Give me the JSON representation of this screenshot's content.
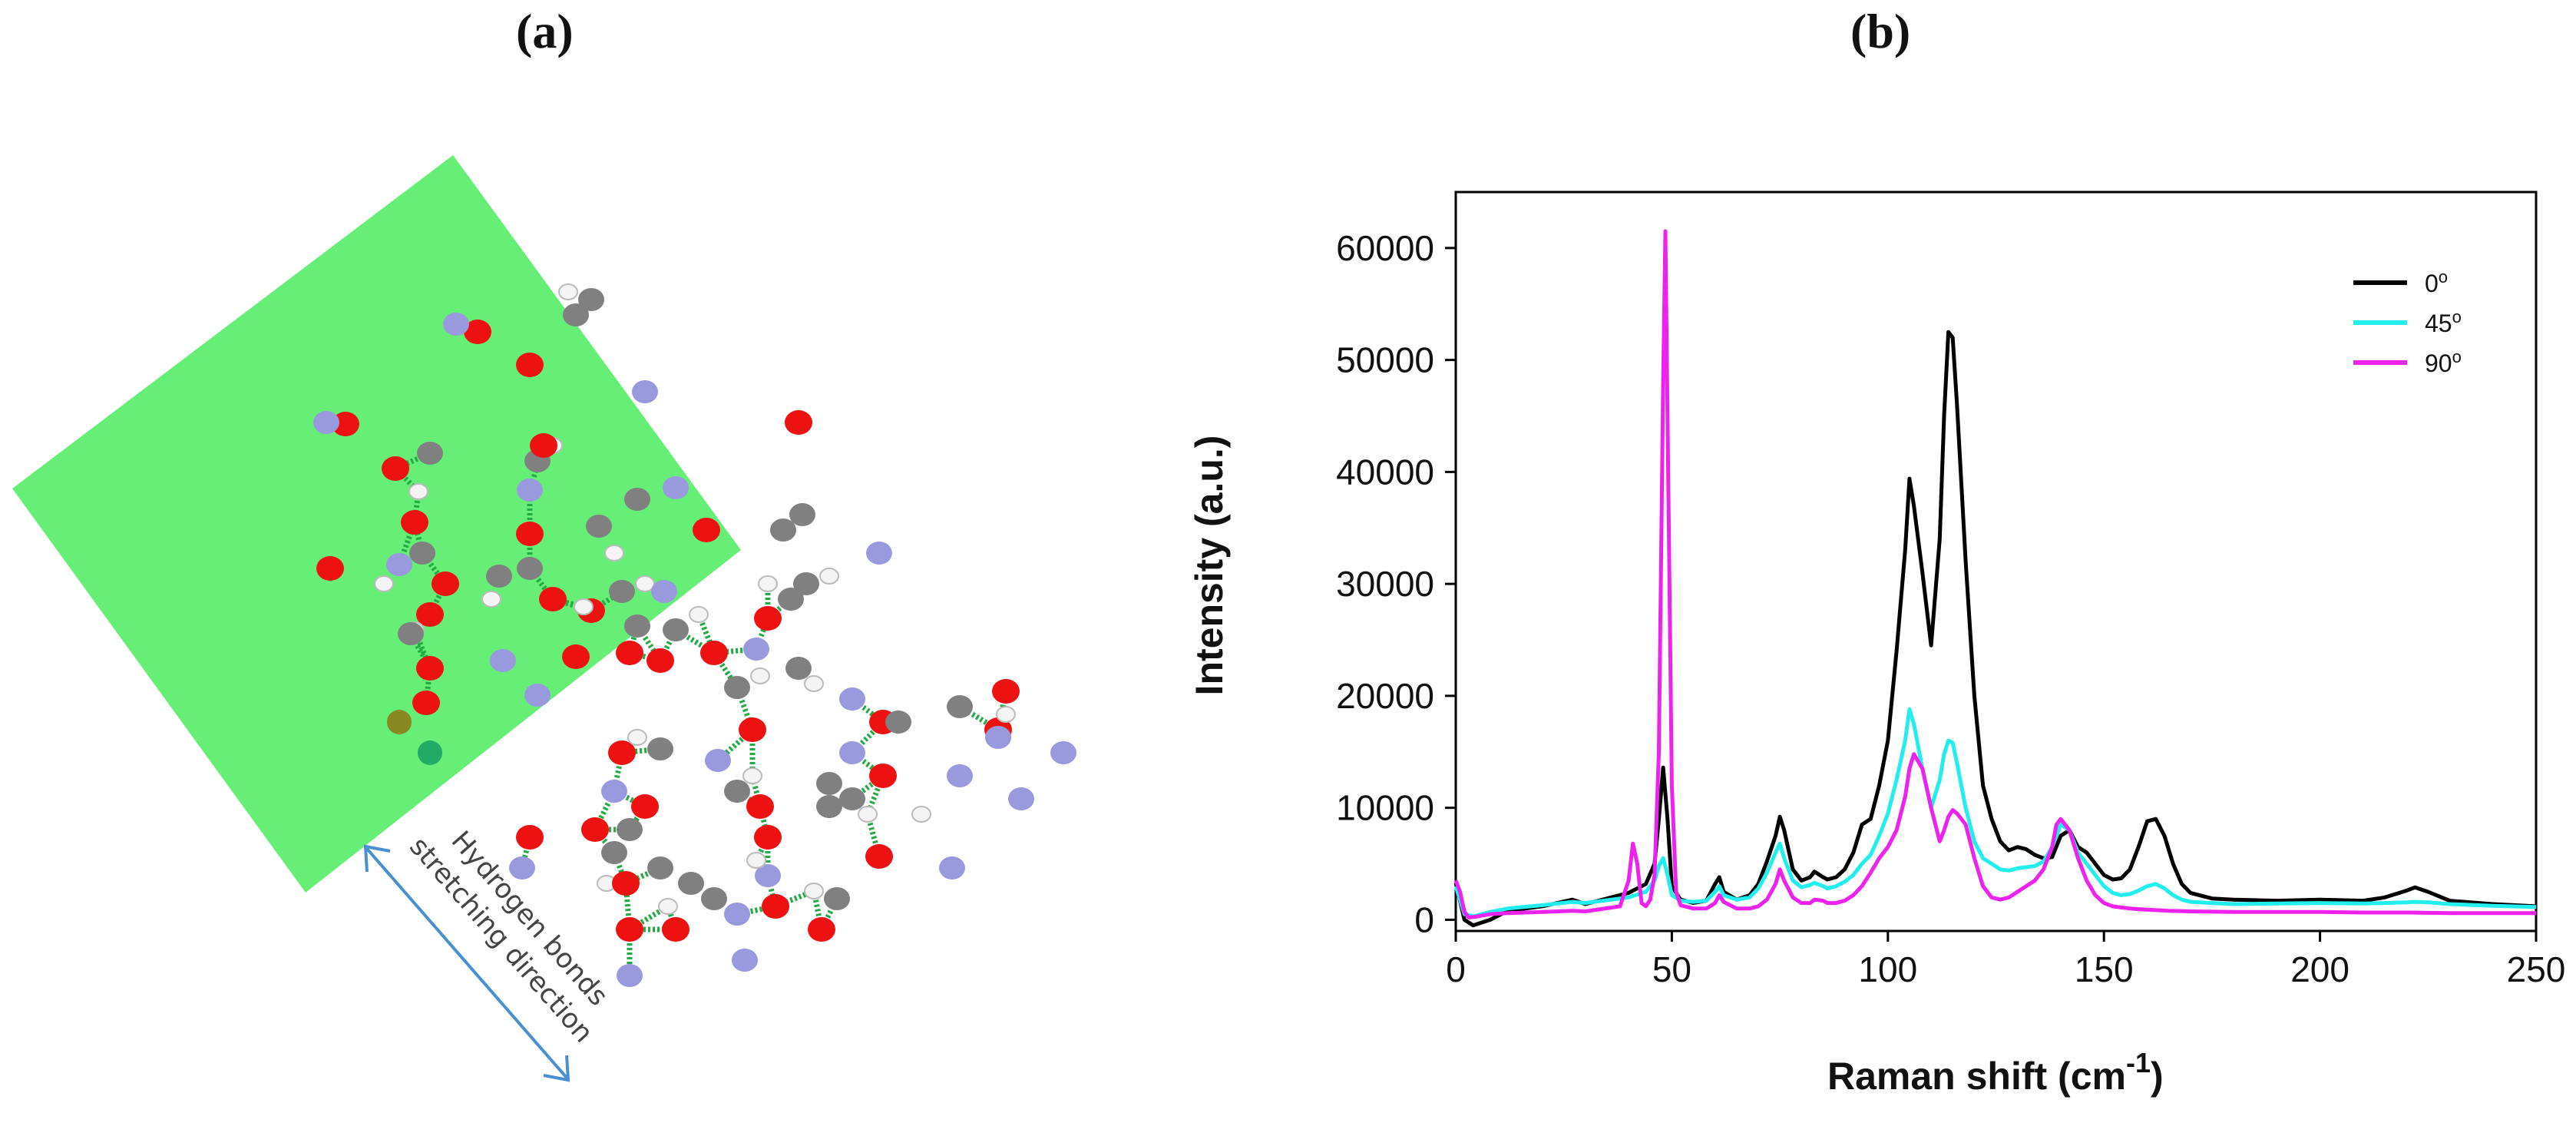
{
  "panels": {
    "a_label": "(a)",
    "b_label": "(b)"
  },
  "molecule": {
    "annotation_line1": "Hydrogen bonds",
    "annotation_line2": "stretching direction",
    "colors": {
      "plane": "#66ee77",
      "oxygen": "#ee1111",
      "nitrogen": "#9999dd",
      "carbon": "#808080",
      "hydrogen": "#f4f4f4",
      "bond": "#22aa44",
      "arrow": "#4a90d0"
    }
  },
  "chart_data": {
    "type": "line",
    "xlabel": "Raman shift (cm",
    "xlabel_sup": "-1",
    "xlabel_end": ")",
    "ylabel": "Intensity (a.u.)",
    "xlim": [
      0,
      250
    ],
    "ylim": [
      -1000,
      65000
    ],
    "xticks": [
      0,
      50,
      100,
      150,
      200,
      250
    ],
    "yticks": [
      0,
      10000,
      20000,
      30000,
      40000,
      50000,
      60000
    ],
    "legend_position": "top-right",
    "series": [
      {
        "name": "0",
        "unit": "o",
        "color": "#000000",
        "x": [
          0,
          2,
          4,
          8,
          12,
          20,
          27,
          30,
          40,
          44,
          46,
          47,
          48,
          49,
          50,
          52,
          55,
          58,
          60,
          61,
          62,
          65,
          68,
          70,
          72,
          74,
          75,
          76,
          78,
          80,
          82,
          83,
          85,
          86,
          88,
          90,
          92,
          94,
          96,
          98,
          100,
          102,
          104,
          105,
          106,
          108,
          110,
          112,
          113,
          114,
          115,
          116,
          118,
          120,
          122,
          124,
          126,
          128,
          130,
          132,
          134,
          136,
          138,
          140,
          142,
          144,
          146,
          148,
          150,
          152,
          154,
          156,
          158,
          160,
          162,
          164,
          166,
          168,
          170,
          175,
          180,
          190,
          200,
          210,
          215,
          220,
          222,
          225,
          230,
          240,
          250
        ],
        "y": [
          3300,
          0,
          -500,
          0,
          800,
          1200,
          1800,
          1400,
          2400,
          3200,
          5000,
          9000,
          13600,
          9000,
          3000,
          1800,
          1500,
          1700,
          3200,
          3800,
          2500,
          1800,
          2200,
          3200,
          5200,
          7500,
          9200,
          8000,
          4500,
          3500,
          3800,
          4300,
          3800,
          3600,
          3800,
          4500,
          6000,
          8500,
          9000,
          12000,
          16000,
          24000,
          33000,
          39400,
          37000,
          31000,
          24500,
          34000,
          45000,
          52500,
          52000,
          46000,
          32000,
          20000,
          12000,
          9000,
          7000,
          6200,
          6500,
          6300,
          5800,
          5500,
          5600,
          7500,
          8000,
          6500,
          6000,
          5000,
          4000,
          3600,
          3700,
          4500,
          6500,
          8800,
          9000,
          7500,
          5000,
          3200,
          2400,
          1900,
          1800,
          1700,
          1800,
          1700,
          2000,
          2600,
          2900,
          2500,
          1700,
          1400,
          1200
        ]
      },
      {
        "name": "45",
        "unit": "o",
        "color": "#22eeee",
        "x": [
          0,
          2,
          4,
          8,
          12,
          20,
          27,
          30,
          40,
          44,
          46,
          47,
          48,
          49,
          50,
          52,
          55,
          58,
          60,
          61,
          62,
          65,
          68,
          70,
          72,
          74,
          75,
          76,
          78,
          80,
          82,
          83,
          85,
          86,
          88,
          90,
          92,
          94,
          96,
          98,
          100,
          102,
          104,
          105,
          106,
          108,
          110,
          112,
          113,
          114,
          115,
          116,
          118,
          120,
          122,
          124,
          126,
          128,
          130,
          132,
          134,
          136,
          138,
          140,
          142,
          144,
          146,
          148,
          150,
          152,
          154,
          156,
          158,
          160,
          162,
          164,
          166,
          168,
          170,
          175,
          180,
          190,
          200,
          210,
          215,
          220,
          222,
          225,
          230,
          240,
          250
        ],
        "y": [
          3000,
          500,
          300,
          700,
          1000,
          1300,
          1600,
          1500,
          2000,
          2500,
          3500,
          4800,
          5500,
          4000,
          2200,
          1700,
          1600,
          1700,
          2500,
          3000,
          2200,
          1800,
          2000,
          2800,
          4200,
          6000,
          6800,
          5500,
          3500,
          2900,
          3100,
          3300,
          3000,
          2800,
          3000,
          3400,
          4000,
          5000,
          5800,
          7500,
          9500,
          12500,
          16000,
          18800,
          17500,
          13500,
          10000,
          12500,
          14800,
          16000,
          15800,
          14000,
          10000,
          7000,
          5500,
          5000,
          4500,
          4400,
          4600,
          4700,
          4800,
          5200,
          6500,
          8500,
          8000,
          6000,
          5000,
          4000,
          3000,
          2400,
          2200,
          2300,
          2600,
          3000,
          3200,
          2800,
          2200,
          1800,
          1600,
          1500,
          1400,
          1450,
          1500,
          1450,
          1500,
          1550,
          1600,
          1550,
          1400,
          1250,
          1150
        ]
      },
      {
        "name": "90",
        "unit": "o",
        "color": "#ee22ee",
        "x": [
          0,
          1,
          2,
          3,
          5,
          8,
          12,
          20,
          27,
          30,
          38,
          40,
          41,
          42,
          43,
          44,
          45,
          46,
          47,
          48,
          48.5,
          49,
          50,
          51,
          52,
          55,
          58,
          60,
          61,
          62,
          65,
          68,
          70,
          72,
          74,
          75,
          76,
          78,
          80,
          82,
          83,
          85,
          86,
          88,
          90,
          92,
          94,
          96,
          98,
          100,
          102,
          104,
          105,
          106,
          108,
          110,
          112,
          113,
          114,
          115,
          116,
          118,
          120,
          122,
          124,
          126,
          128,
          130,
          132,
          134,
          136,
          138,
          139,
          140,
          142,
          144,
          146,
          148,
          150,
          152,
          154,
          156,
          158,
          160,
          165,
          170,
          180,
          190,
          200,
          210,
          220,
          230,
          240,
          250
        ],
        "y": [
          3500,
          2500,
          700,
          200,
          300,
          500,
          600,
          700,
          800,
          750,
          1200,
          3500,
          6800,
          5000,
          1500,
          1200,
          1800,
          4000,
          15000,
          48000,
          61500,
          45000,
          12000,
          2500,
          1300,
          1000,
          1000,
          1500,
          2200,
          1600,
          1000,
          1000,
          1200,
          1800,
          3200,
          4500,
          3500,
          2000,
          1500,
          1500,
          1800,
          1700,
          1500,
          1500,
          1700,
          2200,
          3000,
          4200,
          5500,
          6500,
          8000,
          11000,
          13500,
          14800,
          13500,
          10000,
          7000,
          8000,
          9200,
          9800,
          9500,
          8500,
          5500,
          3000,
          2000,
          1800,
          2000,
          2500,
          3000,
          3500,
          4500,
          6500,
          8500,
          9000,
          8000,
          5500,
          3500,
          2200,
          1500,
          1200,
          1100,
          1000,
          950,
          900,
          800,
          750,
          700,
          700,
          700,
          650,
          650,
          600,
          600,
          600
        ]
      }
    ]
  }
}
